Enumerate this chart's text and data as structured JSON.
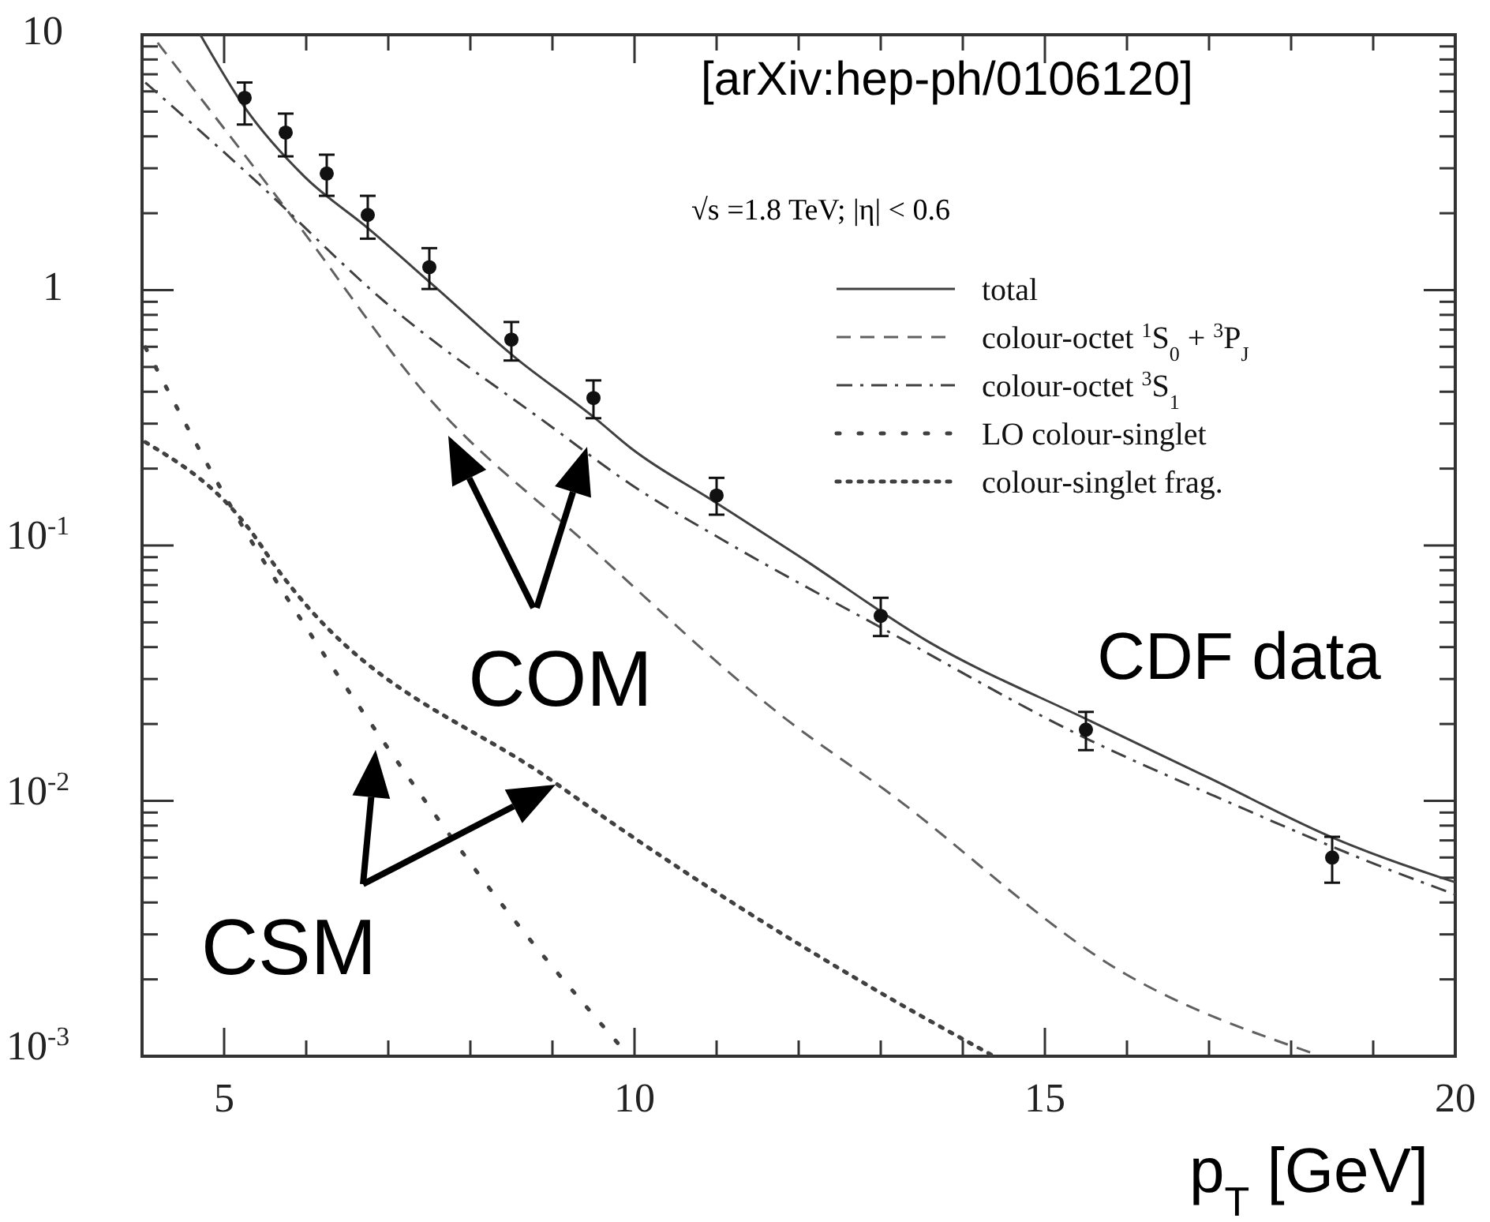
{
  "chart_data": {
    "type": "line",
    "xlabel": "p$_{T}$ [GeV]",
    "log": "y",
    "xlim": [
      4,
      20
    ],
    "ylim": [
      0.001,
      10
    ],
    "xticks": [
      {
        "value": 5,
        "label": "5"
      },
      {
        "value": 6,
        "label": null
      },
      {
        "value": 7,
        "label": null
      },
      {
        "value": 8,
        "label": null
      },
      {
        "value": 9,
        "label": null
      },
      {
        "value": 10,
        "label": "10"
      },
      {
        "value": 11,
        "label": null
      },
      {
        "value": 12,
        "label": null
      },
      {
        "value": 13,
        "label": null
      },
      {
        "value": 14,
        "label": null
      },
      {
        "value": 15,
        "label": "15"
      },
      {
        "value": 16,
        "label": null
      },
      {
        "value": 17,
        "label": null
      },
      {
        "value": 18,
        "label": null
      },
      {
        "value": 19,
        "label": null
      },
      {
        "value": 20,
        "label": "20"
      }
    ],
    "yticks": [
      {
        "value": 0.001,
        "label": "10$^{-3}$"
      },
      {
        "value": 0.01,
        "label": "10$^{-2}$"
      },
      {
        "value": 0.1,
        "label": "10$^{-1}$"
      },
      1,
      10
    ],
    "legend": "top right",
    "grid": false,
    "series": [
      {
        "name": "total",
        "color": "#404040",
        "line_style": "solid",
        "x": [
          4.71,
          5.25,
          5.98,
          6.75,
          7.54,
          8.56,
          9.52,
          9.96,
          10.98,
          12,
          13.58,
          15.56,
          17,
          18.54,
          19.83,
          20
        ],
        "values": [
          10,
          5.2,
          2.78,
          1.75,
          1.05,
          0.54,
          0.315,
          0.24,
          0.148,
          0.091,
          0.042,
          0.0205,
          0.0123,
          0.0071,
          0.005,
          0.0048
        ]
      },
      {
        "name": "colour-octet $^{1}$S$_{0}$ + $^{3}$P$_{J}$",
        "color": "#606060",
        "line_style": "dashed",
        "x": [
          4.19,
          5.87,
          7.52,
          9.38,
          11.88,
          13.04,
          15.98,
          18.29
        ],
        "values": [
          9.3,
          1.86,
          0.37,
          0.104,
          0.0205,
          0.0111,
          0.0021,
          0.00102
        ]
      },
      {
        "name": "colour-octet $^{3}$S$_{1}$",
        "color": "#404040",
        "line_style": "dashdot",
        "x": [
          4.04,
          5.35,
          6.94,
          9,
          9.96,
          11.1,
          13.04,
          15.56,
          17.02,
          19.38,
          20
        ],
        "values": [
          6.5,
          2.74,
          0.91,
          0.29,
          0.173,
          0.104,
          0.047,
          0.0172,
          0.0106,
          0.0051,
          0.0043
        ]
      },
      {
        "name": "LO colour-singlet",
        "color": "#404040",
        "line_style": "loosely dotted",
        "x": [
          4.04,
          5.21,
          6.12,
          6.88,
          8.29,
          9.9
        ],
        "values": [
          0.597,
          0.121,
          0.0417,
          0.0182,
          0.0043,
          0.00103
        ]
      },
      {
        "name": "colour-singlet frag.",
        "color": "#404040",
        "line_style": "dotted",
        "x": [
          4.04,
          5.35,
          5.6,
          9.06,
          13.04,
          14.38
        ],
        "values": [
          0.254,
          0.111,
          0.085,
          0.0116,
          0.00174,
          0.001
        ]
      },
      {
        "type": "scatter",
        "marker": "circle",
        "color": "#111111",
        "x": [
          5.25,
          5.75,
          6.25,
          6.75,
          7.5,
          8.5,
          9.5,
          11,
          13,
          15.5,
          18.5
        ],
        "values": [
          5.66,
          4.14,
          2.86,
          1.97,
          1.23,
          0.64,
          0.378,
          0.157,
          0.053,
          0.019,
          0.006
        ],
        "errors": [
          [
            4.45,
            6.5
          ],
          [
            3.34,
            4.91
          ],
          [
            2.34,
            3.39
          ],
          [
            1.59,
            2.34
          ],
          [
            1.01,
            1.46
          ],
          [
            0.53,
            0.75
          ],
          [
            0.315,
            0.443
          ],
          [
            0.132,
            0.184
          ],
          [
            0.0442,
            0.0624
          ],
          [
            0.0158,
            0.0223
          ],
          [
            0.00478,
            0.00723
          ]
        ]
      }
    ],
    "annotations": [
      "[arXiv:hep-ph/0106120]",
      "√s =1.8 TeV; |η| < 0.6",
      "CDF data",
      "COM",
      "CSM"
    ]
  }
}
